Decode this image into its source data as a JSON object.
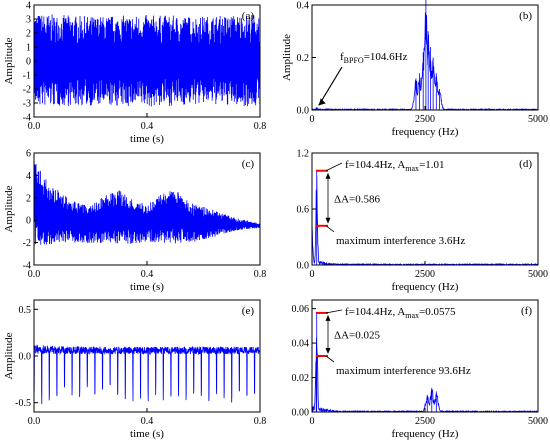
{
  "colors": {
    "signal": "#0000ff",
    "axes": "#000000",
    "marker": "#ff0000",
    "background": "#ffffff"
  },
  "chart_data": [
    {
      "id": "a",
      "panel_label": "(a)",
      "type": "line",
      "signal": "time",
      "xlabel": "time (s)",
      "ylabel": "Amplitude",
      "xlim": [
        0,
        0.8
      ],
      "ylim": [
        -4,
        4
      ],
      "xticks": [
        0.0,
        0.4,
        0.8
      ],
      "xticklabels": [
        "0.0",
        "0.4",
        "0.8"
      ],
      "yticks": [
        -4,
        -3,
        -2,
        -1,
        0,
        1,
        2,
        3,
        4
      ],
      "yticklabels": [
        "-4",
        "-3",
        "-2",
        "-1",
        "0",
        "1",
        "2",
        "3",
        "4"
      ],
      "envelope": {
        "x": [
          0.0,
          0.2,
          0.4,
          0.6,
          0.8
        ],
        "ymin": [
          -3.3,
          -3.2,
          -3.3,
          -3.1,
          -3.3
        ],
        "ymax": [
          3.4,
          3.2,
          3.3,
          3.2,
          3.4
        ]
      }
    },
    {
      "id": "b",
      "panel_label": "(b)",
      "type": "line",
      "signal": "spectrum",
      "xlabel": "frequency (Hz)",
      "ylabel": "Amplitude",
      "xlim": [
        0,
        5000
      ],
      "ylim": [
        0,
        0.4
      ],
      "xticks": [
        0,
        2500,
        5000
      ],
      "xticklabels": [
        "0",
        "2500",
        "5000"
      ],
      "yticks": [
        0.0,
        0.2,
        0.4
      ],
      "yticklabels": [
        "0.0",
        "0.2",
        "0.4"
      ],
      "peaks": [
        {
          "x": 104.6,
          "y": 0.01
        },
        {
          "x": 2300,
          "y": 0.12
        },
        {
          "x": 2380,
          "y": 0.14
        },
        {
          "x": 2460,
          "y": 0.22
        },
        {
          "x": 2520,
          "y": 0.42
        },
        {
          "x": 2570,
          "y": 0.3
        },
        {
          "x": 2620,
          "y": 0.24
        },
        {
          "x": 2680,
          "y": 0.2
        },
        {
          "x": 2750,
          "y": 0.14
        },
        {
          "x": 2820,
          "y": 0.08
        }
      ],
      "annotations": [
        {
          "text_main": "f",
          "text_sub": "BPFO",
          "text_rest": "=104.6Hz"
        }
      ]
    },
    {
      "id": "c",
      "panel_label": "(c)",
      "type": "line",
      "signal": "time",
      "xlabel": "time (s)",
      "ylabel": "Amplitude",
      "xlim": [
        0,
        0.8
      ],
      "ylim": [
        -4,
        6
      ],
      "xticks": [
        0.0,
        0.4,
        0.8
      ],
      "xticklabels": [
        "0.0",
        "0.4",
        "0.8"
      ],
      "yticks": [
        -4,
        -2,
        0,
        2,
        4,
        6
      ],
      "yticklabels": [
        "-4",
        "-2",
        "0",
        "2",
        "4",
        "6"
      ],
      "envelope": {
        "x": [
          0.0,
          0.05,
          0.1,
          0.15,
          0.2,
          0.25,
          0.3,
          0.35,
          0.4,
          0.45,
          0.5,
          0.55,
          0.6,
          0.65,
          0.7,
          0.75,
          0.8
        ],
        "ymin": [
          -2.4,
          -2.2,
          -2.0,
          -2.0,
          -2.1,
          -2.0,
          -2.1,
          -2.1,
          -2.0,
          -2.0,
          -2.1,
          -2.0,
          -1.8,
          -1.4,
          -1.0,
          -0.8,
          -0.7
        ],
        "ymax": [
          5.3,
          3.4,
          2.4,
          1.6,
          1.3,
          2.3,
          2.7,
          1.8,
          1.4,
          2.4,
          2.8,
          1.6,
          1.2,
          0.8,
          0.3,
          0.0,
          -0.3
        ]
      }
    },
    {
      "id": "d",
      "panel_label": "(d)",
      "type": "line",
      "signal": "spectrum",
      "xlabel": "frequency (Hz)",
      "ylabel": "",
      "xlim": [
        0,
        5000
      ],
      "ylim": [
        0,
        1.2
      ],
      "xticks": [
        0,
        2500,
        5000
      ],
      "xticklabels": [
        "0",
        "2500",
        "5000"
      ],
      "yticks": [
        0.0,
        0.6,
        1.2
      ],
      "yticklabels": [
        "0.0",
        "0.6",
        "1.2"
      ],
      "peaks": [
        {
          "x": 3.6,
          "y": 0.42
        },
        {
          "x": 104.4,
          "y": 1.01
        }
      ],
      "marker_levels": [
        1.01,
        0.42
      ],
      "annotations": [
        {
          "text_main": "f=104.4Hz, A",
          "text_sub": "max",
          "text_rest": "=1.01"
        },
        {
          "text_main": "ΔA=0.586",
          "text_sub": "",
          "text_rest": ""
        },
        {
          "text_main": "maximum interference 3.6Hz",
          "text_sub": "",
          "text_rest": ""
        }
      ]
    },
    {
      "id": "e",
      "panel_label": "(e)",
      "type": "line",
      "signal": "time",
      "xlabel": "time (s)",
      "ylabel": "Amplitude",
      "xlim": [
        0,
        0.8
      ],
      "ylim": [
        -0.6,
        0.6
      ],
      "xticks": [
        0.0,
        0.4,
        0.8
      ],
      "xticklabels": [
        "0.0",
        "0.4",
        "0.8"
      ],
      "yticks": [
        -0.5,
        0.0,
        0.5
      ],
      "yticklabels": [
        "-0.5",
        "0.0",
        "0.5"
      ],
      "envelope": {
        "x": [
          0.0,
          0.2,
          0.4,
          0.6,
          0.8
        ],
        "ymin": [
          -0.58,
          -0.45,
          -0.5,
          -0.48,
          -0.52
        ],
        "ymax": [
          0.12,
          0.1,
          0.1,
          0.1,
          0.1
        ]
      }
    },
    {
      "id": "f",
      "panel_label": "(f)",
      "type": "line",
      "signal": "spectrum",
      "xlabel": "frequency (Hz)",
      "ylabel": "",
      "xlim": [
        0,
        5000
      ],
      "ylim": [
        0,
        0.065
      ],
      "xticks": [
        0,
        2500,
        5000
      ],
      "xticklabels": [
        "0",
        "2500",
        "5000"
      ],
      "yticks": [
        0.0,
        0.02,
        0.04,
        0.06
      ],
      "yticklabels": [
        "0.00",
        "0.02",
        "0.04",
        "0.06"
      ],
      "peaks": [
        {
          "x": 93.6,
          "y": 0.0325
        },
        {
          "x": 104.4,
          "y": 0.0575
        },
        {
          "x": 2550,
          "y": 0.01
        },
        {
          "x": 2650,
          "y": 0.014
        },
        {
          "x": 2750,
          "y": 0.012
        }
      ],
      "marker_levels": [
        0.0575,
        0.0325
      ],
      "annotations": [
        {
          "text_main": "f=104.4Hz, A",
          "text_sub": "max",
          "text_rest": "=0.0575"
        },
        {
          "text_main": "ΔA=0.025",
          "text_sub": "",
          "text_rest": ""
        },
        {
          "text_main": "maximum interference 93.6Hz",
          "text_sub": "",
          "text_rest": ""
        }
      ]
    }
  ]
}
